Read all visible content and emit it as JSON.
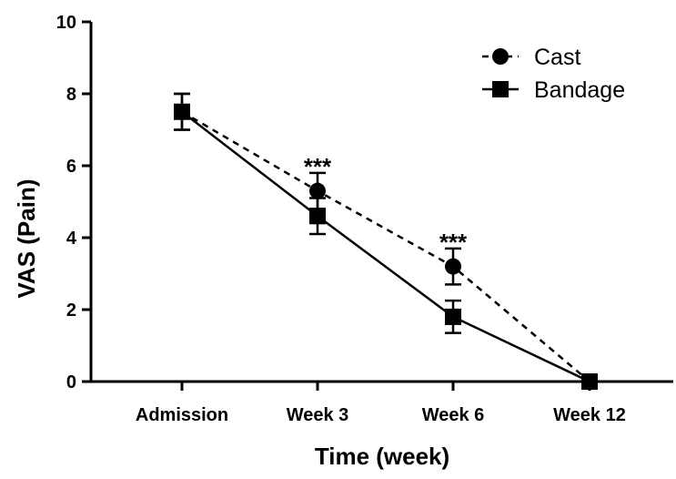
{
  "chart_data": {
    "type": "line",
    "title": "",
    "xlabel": "Time (week)",
    "ylabel": "VAS (Pain)",
    "categories": [
      "Admission",
      "Week 3",
      "Week 6",
      "Week 12"
    ],
    "ylim": [
      0,
      10
    ],
    "yticks": [
      "0",
      "2",
      "4",
      "6",
      "8",
      "10"
    ],
    "grid": false,
    "legend_position": "top-right",
    "series": [
      {
        "name": "Cast",
        "marker": "circle",
        "line_style": "dashed",
        "values": [
          7.5,
          5.3,
          3.2,
          0.0
        ],
        "error": [
          0.5,
          0.5,
          0.5,
          0.0
        ]
      },
      {
        "name": "Bandage",
        "marker": "square",
        "line_style": "solid",
        "values": [
          7.5,
          4.6,
          1.8,
          0.0
        ],
        "error": [
          0.5,
          0.5,
          0.45,
          0.0
        ]
      }
    ],
    "annotations": [
      {
        "category": "Week 3",
        "y": 6.0,
        "text": "***"
      },
      {
        "category": "Week 6",
        "y": 3.9,
        "text": "***"
      }
    ]
  }
}
